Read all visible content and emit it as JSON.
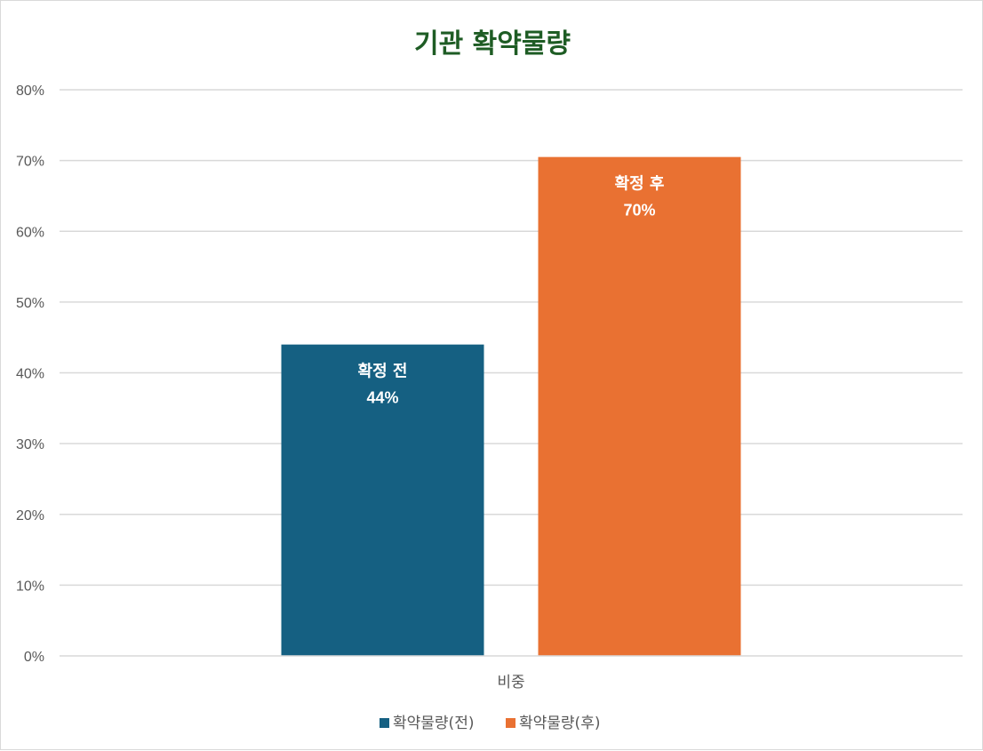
{
  "chart_data": {
    "type": "bar",
    "title": "기관 확약물량",
    "categories": [
      "비중"
    ],
    "series": [
      {
        "name": "확약물량(전)",
        "values": [
          0.44
        ],
        "label": "확정 전",
        "value_label": "44%",
        "color": "#156082"
      },
      {
        "name": "확약물량(후)",
        "values": [
          0.705
        ],
        "label": "확정 후",
        "value_label": "70%",
        "color": "#e97132"
      }
    ],
    "ylim": [
      0,
      0.8
    ],
    "yticks": [
      "0%",
      "10%",
      "20%",
      "30%",
      "40%",
      "50%",
      "60%",
      "70%",
      "80%"
    ],
    "grid": true,
    "legend_position": "bottom",
    "xlabel": "",
    "ylabel": ""
  }
}
